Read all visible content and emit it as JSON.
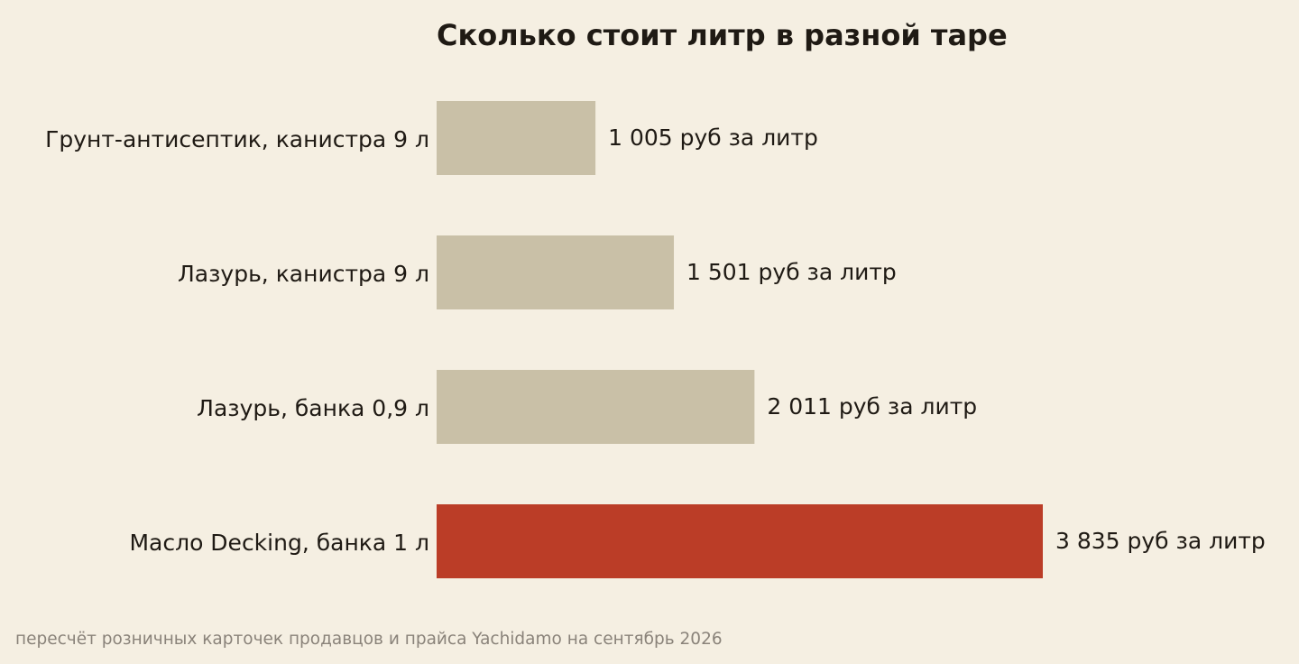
{
  "chart_data": {
    "type": "bar",
    "orientation": "horizontal",
    "title": "Сколько стоит литр в разной таре",
    "xlabel": "",
    "ylabel": "",
    "grid": false,
    "legend": "none",
    "categories": [
      "Грунт-антисептик, канистра 9 л",
      "Лазурь, канистра 9 л",
      "Лазурь, банка 0,9 л",
      "Масло Decking, банка 1 л"
    ],
    "values": [
      1005,
      1501,
      2011,
      3835
    ],
    "value_labels": [
      "1 005 руб за литр",
      "1 501 руб за литр",
      "2 011 руб за литр",
      "3 835 руб за литр"
    ],
    "bar_colors": [
      "#c9c0a7",
      "#c9c0a7",
      "#c9c0a7",
      "#bb3d27"
    ],
    "xlim": [
      0,
      3835
    ]
  },
  "source_note": "пересчёт розничных карточек продавцов и прайса Yachidamo на сентябрь 2026",
  "colors": {
    "background": "#f5efe2",
    "bar_default": "#c9c0a7",
    "bar_highlight": "#bb3d27",
    "text": "#1f1a14",
    "source_text": "#8a837a"
  }
}
